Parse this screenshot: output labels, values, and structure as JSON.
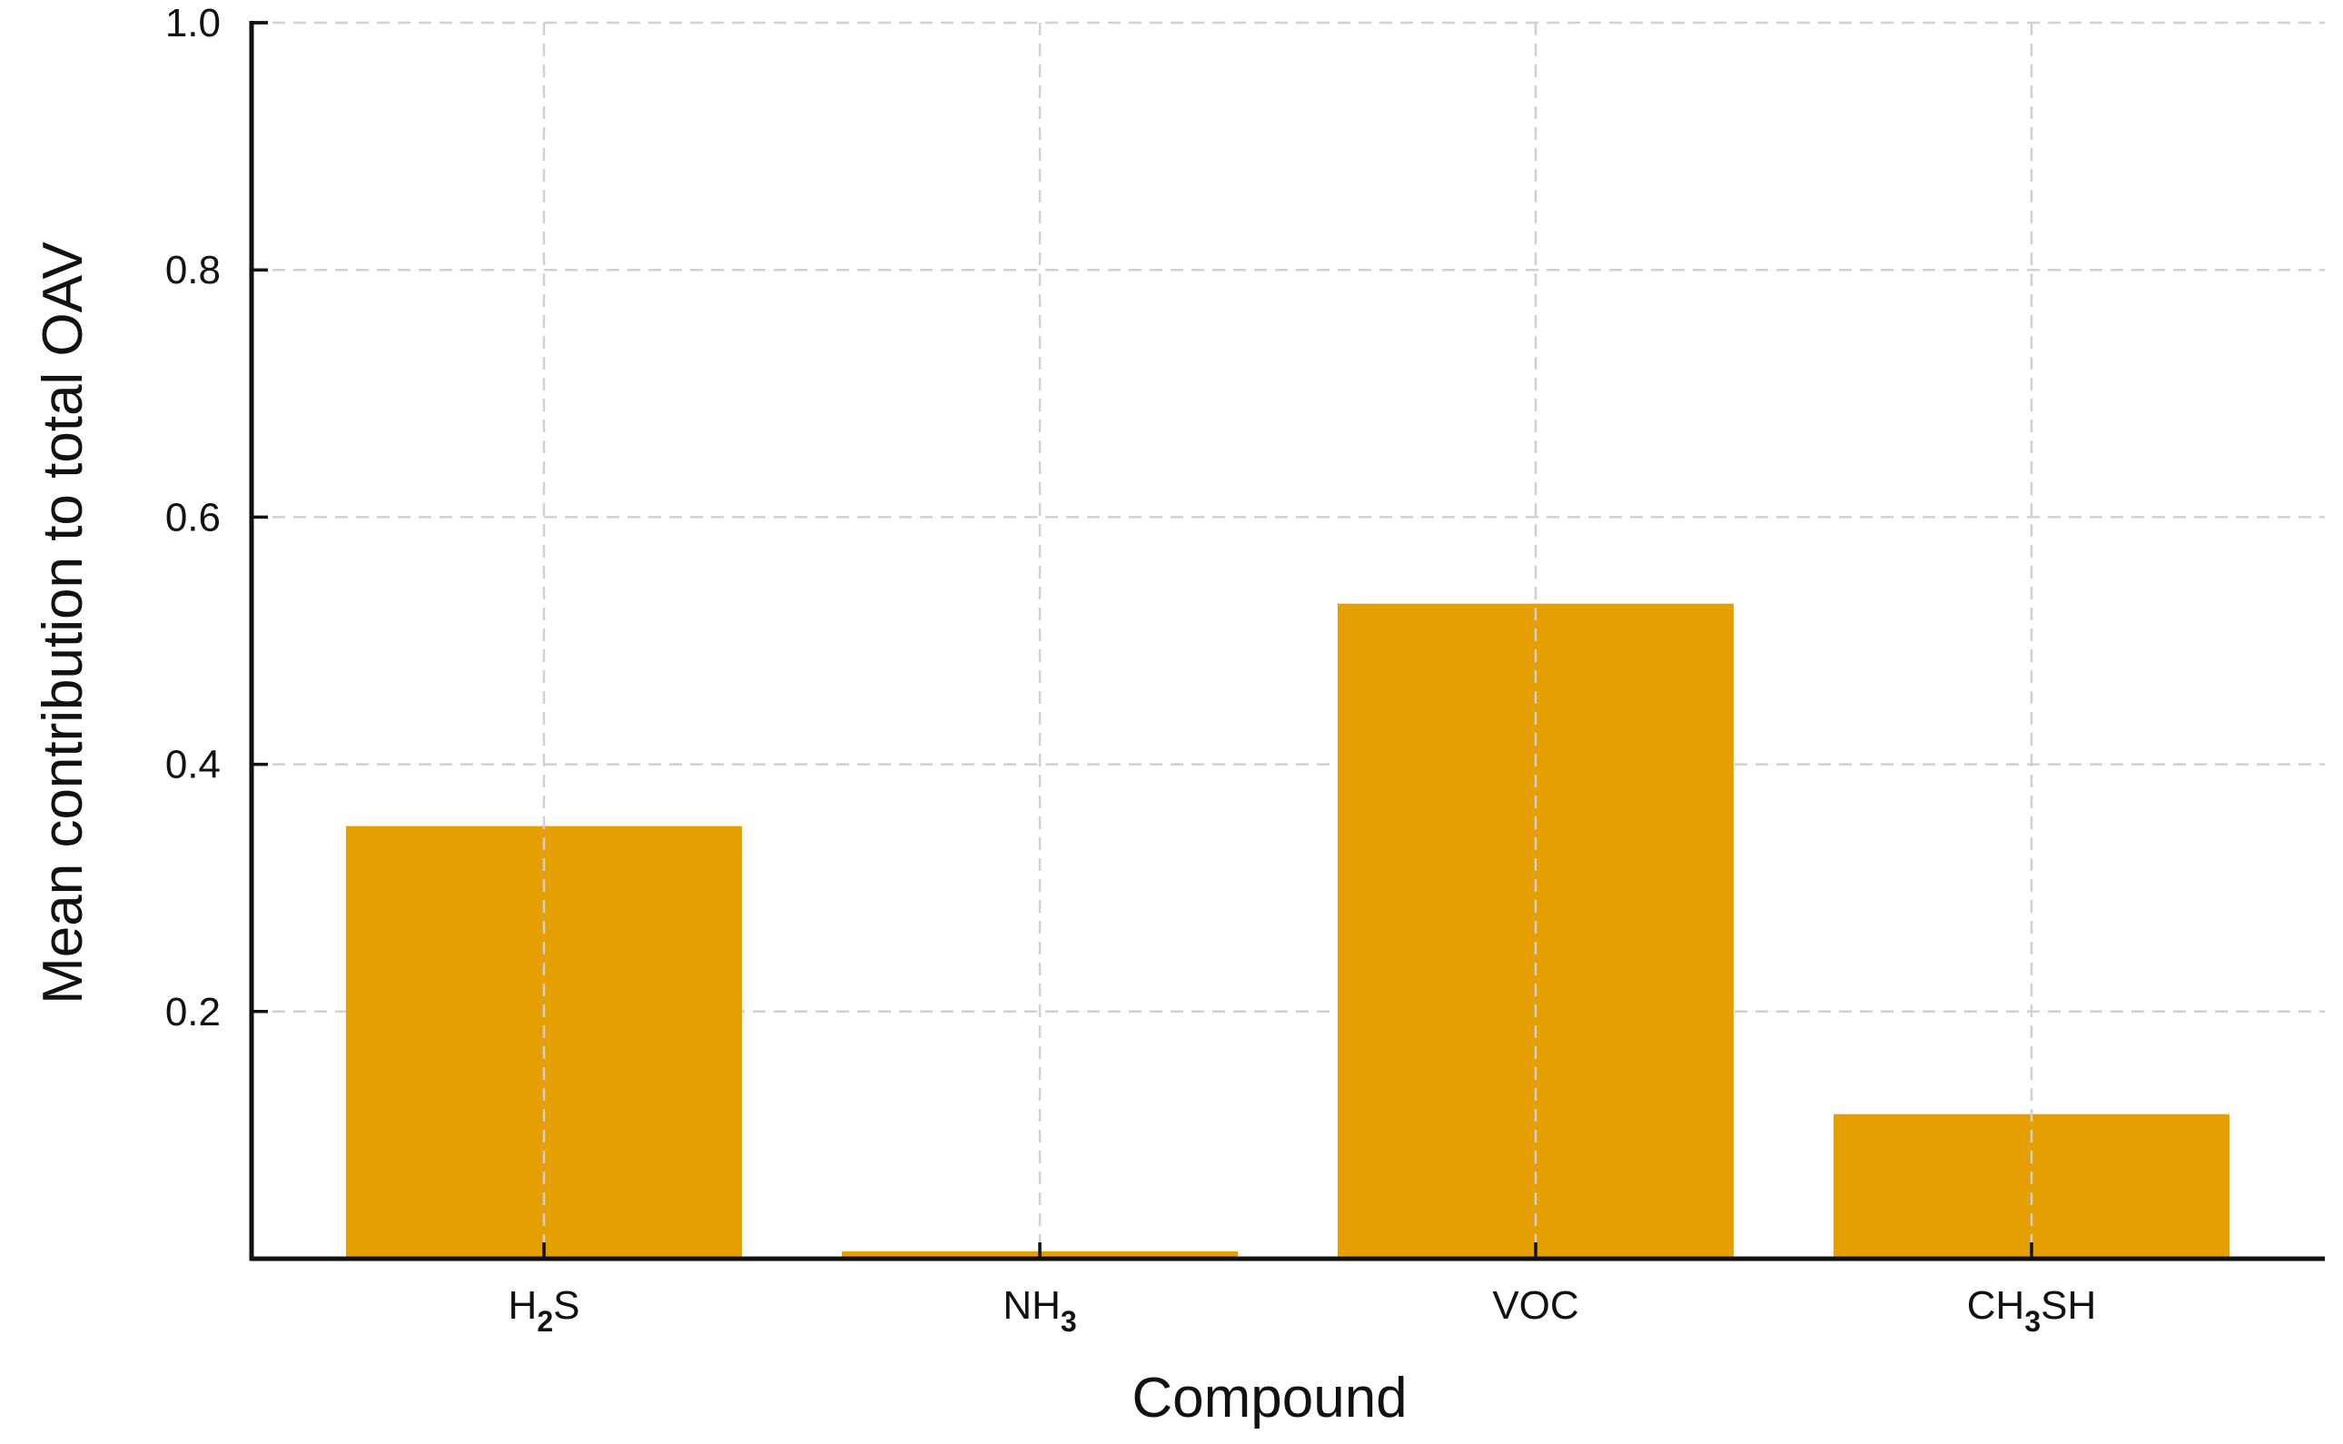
{
  "chart_data": {
    "type": "bar",
    "categories": [
      {
        "label": "H",
        "sub": "2",
        "tail": "S"
      },
      {
        "label": "NH",
        "sub": "3",
        "tail": ""
      },
      {
        "label": "VOC",
        "sub": "",
        "tail": ""
      },
      {
        "label": "CH",
        "sub": "3",
        "tail": "SH"
      }
    ],
    "values": [
      0.35,
      0.006,
      0.53,
      0.117
    ],
    "xlabel": "Compound",
    "ylabel": "Mean contribution to total OAV",
    "ylim": [
      0,
      1.0
    ],
    "yticks": [
      0.2,
      0.4,
      0.6,
      0.8,
      1.0
    ],
    "grid": true,
    "bar_color": "#E69F00"
  }
}
